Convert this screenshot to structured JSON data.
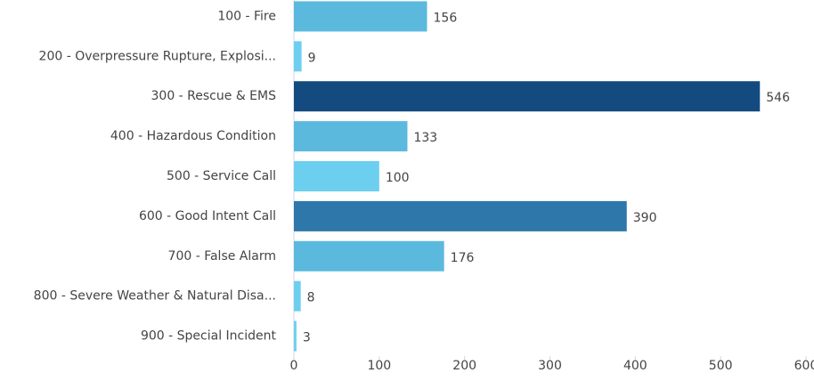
{
  "chart_data": {
    "type": "bar",
    "orientation": "horizontal",
    "categories": [
      "100 - Fire",
      "200 - Overpressure Rupture, Explosi...",
      "300 - Rescue & EMS",
      "400 - Hazardous Condition",
      "500 - Service Call",
      "600 - Good Intent Call",
      "700 - False Alarm",
      "800 - Severe Weather & Natural Disa...",
      "900 - Special Incident"
    ],
    "values": [
      156,
      9,
      546,
      133,
      100,
      390,
      176,
      8,
      3
    ],
    "colors": [
      "#5bb9de",
      "#6ccff0",
      "#134b80",
      "#5bb9de",
      "#6ccff0",
      "#2e77aa",
      "#5bb9de",
      "#6ccff0",
      "#6ccff0"
    ],
    "xlim": [
      0,
      600
    ],
    "xticks": [
      0,
      100,
      200,
      300,
      400,
      500,
      600
    ],
    "grid": false
  }
}
